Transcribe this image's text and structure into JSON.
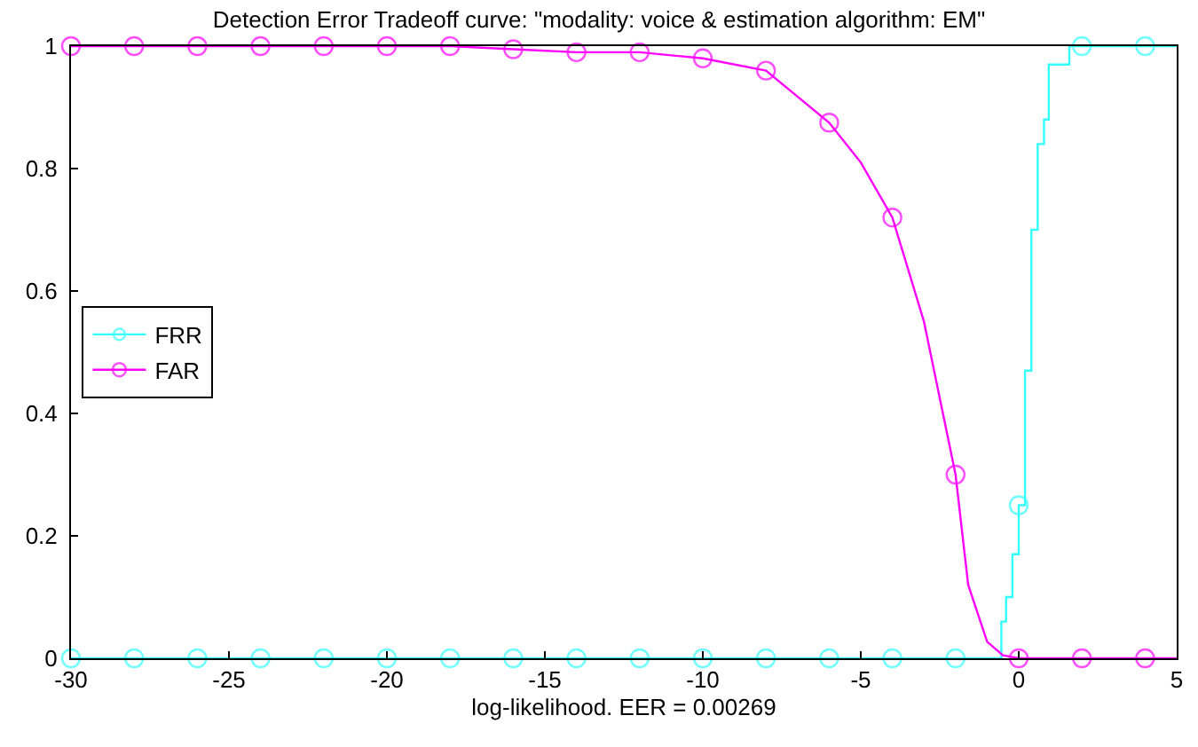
{
  "chart_data": {
    "type": "line",
    "title": "Detection Error Tradeoff curve: \"modality: voice & estimation algorithm: EM\"",
    "xlabel": "log-likelihood. EER = 0.00269",
    "xlim": [
      -30,
      5
    ],
    "xticks": [
      -30,
      -25,
      -20,
      -15,
      -10,
      -5,
      0,
      5
    ],
    "ylim": [
      0,
      1
    ],
    "yticks": [
      0,
      0.2,
      0.4,
      0.6,
      0.8,
      1
    ],
    "legend": "left",
    "marker": "circle",
    "line_style": "solid",
    "series": [
      {
        "name": "FRR",
        "type": "step",
        "color": "#33ffff",
        "x": [
          -30,
          -28,
          -26,
          -24,
          -22,
          -20,
          -18,
          -16,
          -14,
          -12,
          -10,
          -8,
          -6,
          -4,
          -2,
          -0.55,
          -0.4,
          -0.2,
          0,
          0.2,
          0.4,
          0.6,
          0.8,
          0.95,
          1.6,
          2,
          4,
          5
        ],
        "values": [
          0,
          0,
          0,
          0,
          0,
          0,
          0,
          0,
          0,
          0,
          0,
          0,
          0,
          0,
          0,
          0.06,
          0.1,
          0.17,
          0.25,
          0.47,
          0.7,
          0.84,
          0.88,
          0.97,
          1,
          1,
          1,
          1
        ]
      },
      {
        "name": "FAR",
        "color": "#ff00ff",
        "x": [
          -30,
          -28,
          -26,
          -24,
          -22,
          -20,
          -18,
          -16,
          -14,
          -12,
          -10,
          -8,
          -6,
          -5,
          -4,
          -3,
          -2,
          -1.6,
          -1,
          -0.5,
          0,
          2,
          4,
          5
        ],
        "values": [
          1,
          1,
          1,
          1,
          1,
          1,
          1,
          0.995,
          0.99,
          0.99,
          0.98,
          0.96,
          0.875,
          0.81,
          0.72,
          0.55,
          0.3,
          0.12,
          0.027,
          0.005,
          0,
          0,
          0,
          0
        ]
      }
    ]
  }
}
